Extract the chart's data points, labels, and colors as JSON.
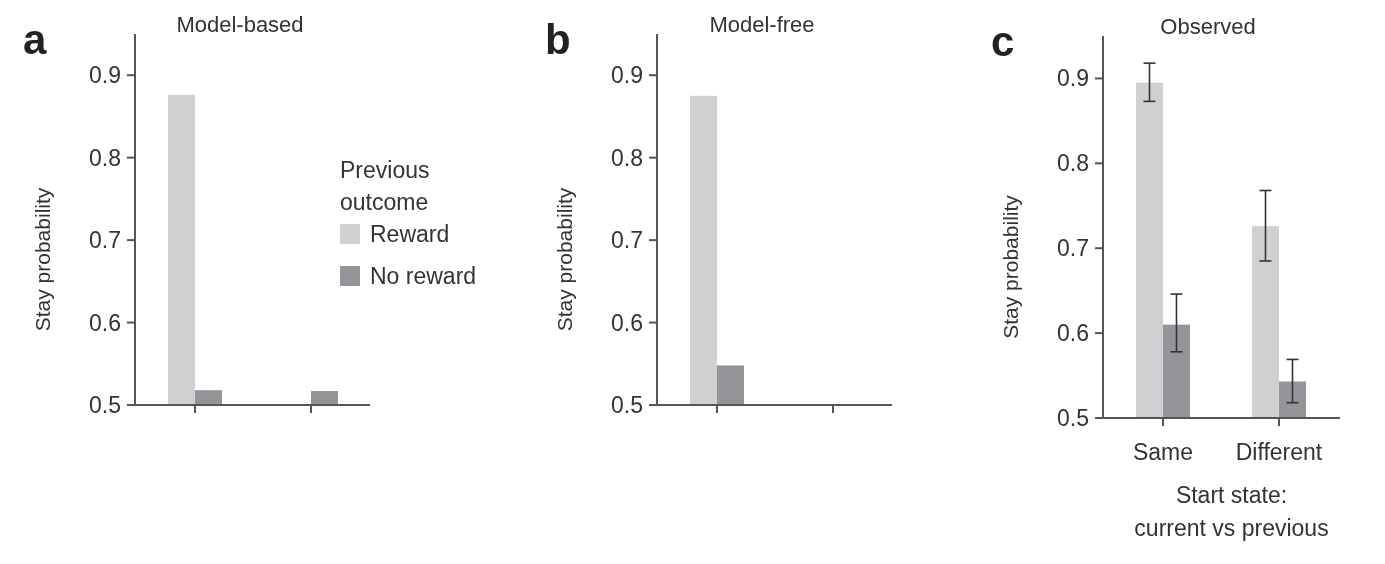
{
  "chart_data": [
    {
      "type": "bar",
      "title": "Model-based",
      "ylabel": "Stay probability",
      "annotations": [
        "a"
      ],
      "legend": "right",
      "legend_title": "Previous outcome",
      "categories": [
        null,
        null
      ],
      "ylim": [
        0.5,
        0.95
      ],
      "yticks": [
        0.5,
        0.6,
        0.7,
        0.8,
        0.9
      ],
      "series": [
        {
          "name": "Reward",
          "color": "#cfd0d2",
          "values": [
            0.876,
            null
          ]
        },
        {
          "name": "No reward",
          "color": "#939598",
          "values": [
            0.518,
            0.517
          ]
        }
      ]
    },
    {
      "type": "bar",
      "title": "Model-free",
      "ylabel": "Stay probability",
      "annotations": [
        "b"
      ],
      "categories": [
        null,
        null
      ],
      "ylim": [
        0.5,
        0.95
      ],
      "yticks": [
        0.5,
        0.6,
        0.7,
        0.8,
        0.9
      ],
      "series": [
        {
          "color": "#cfd0d2",
          "values": [
            0.875,
            null
          ]
        },
        {
          "color": "#939598",
          "values": [
            0.548,
            null
          ]
        }
      ]
    },
    {
      "type": "bar",
      "title": "Observed",
      "ylabel": "Stay probability",
      "xlabel": "Start state: current vs previous",
      "annotations": [
        "c"
      ],
      "categories": [
        "Same",
        "Different"
      ],
      "ylim": [
        0.5,
        0.95
      ],
      "yticks": [
        0.5,
        0.6,
        0.7,
        0.8,
        0.9
      ],
      "series": [
        {
          "color": "#cfd0d2",
          "values": [
            0.895,
            0.726
          ],
          "errors": [
            [
              0.873,
              0.918
            ],
            [
              0.685,
              0.768
            ]
          ]
        },
        {
          "color": "#939598",
          "values": [
            0.61,
            0.543
          ],
          "errors": [
            [
              0.578,
              0.646
            ],
            [
              0.518,
              0.569
            ]
          ]
        }
      ]
    }
  ]
}
